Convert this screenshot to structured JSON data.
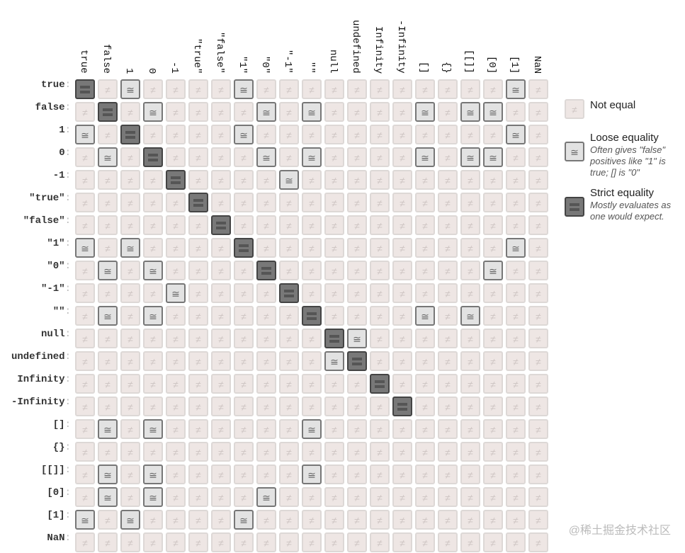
{
  "labels": [
    "true",
    "false",
    "1",
    "0",
    "-1",
    "\"true\"",
    "\"false\"",
    "\"1\"",
    "\"0\"",
    "\"-1\"",
    "\"\"",
    "null",
    "undefined",
    "Infinity",
    "-Infinity",
    "[]",
    "{}",
    "[[]]",
    "[0]",
    "[1]",
    "NaN"
  ],
  "matrix": [
    "S.L....L...........L.",
    ".S.L....L.L....L.LL..",
    "L.S....L...........L.",
    ".L.S....L.L....L.LL..",
    "....S....L...........",
    ".....S...............",
    "......S..............",
    "L.L....S...........L.",
    ".L.L....S.........L..",
    "....L....S...........",
    ".L.L......S....L.L...",
    "...........SL........",
    "...........LS........",
    ".............S.......",
    "..............S......",
    ".L.L......L..........",
    ".....................",
    ".L.L......L..........",
    ".L.L....L............",
    "L.L....L.............",
    "....................."
  ],
  "symbols": {
    "not_equal": "≠",
    "loose": "≅"
  },
  "legend": [
    {
      "type": "n",
      "title": "Not equal",
      "desc": ""
    },
    {
      "type": "l",
      "title": "Loose equality",
      "desc": "Often gives \"false\" positives like \"1\" is true; [] is \"0\""
    },
    {
      "type": "s",
      "title": "Strict equality",
      "desc": "Mostly evaluates as one would expect."
    }
  ],
  "colors": {
    "not_equal_bg": "#eee6e4",
    "loose_bg": "#e2e2e2",
    "strict_bg": "#787878"
  },
  "watermark": "@稀土掘金技术社区"
}
